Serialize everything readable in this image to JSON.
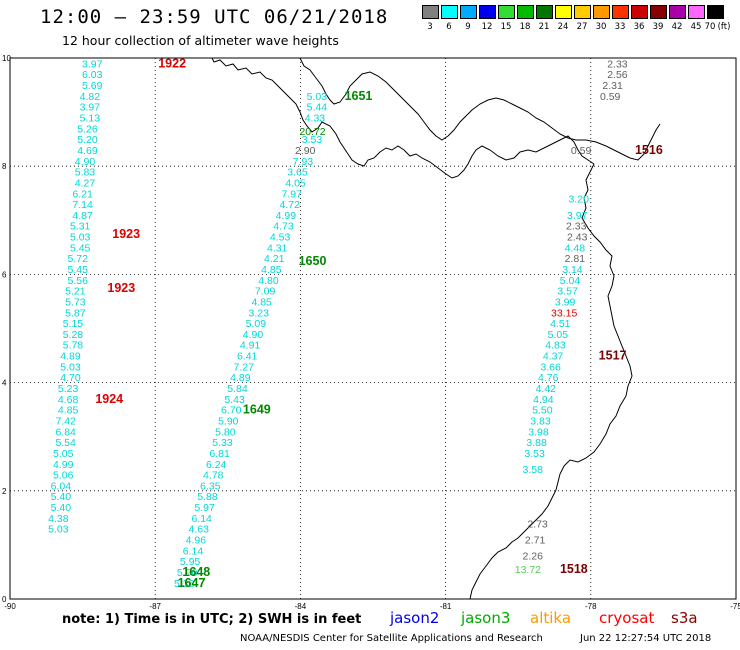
{
  "header": {
    "title": "12:00 – 23:59 UTC 06/21/2018",
    "subtitle": "12 hour collection of altimeter wave heights"
  },
  "color_scale": {
    "unit_label": "(ft)",
    "bins": [
      {
        "label": "3",
        "color": "#808080"
      },
      {
        "label": "6",
        "color": "#00ffff"
      },
      {
        "label": "9",
        "color": "#00aaff"
      },
      {
        "label": "12",
        "color": "#0000ee"
      },
      {
        "label": "15",
        "color": "#33dd33"
      },
      {
        "label": "18",
        "color": "#00bb00"
      },
      {
        "label": "21",
        "color": "#007700"
      },
      {
        "label": "24",
        "color": "#ffff00"
      },
      {
        "label": "27",
        "color": "#ffcc00"
      },
      {
        "label": "30",
        "color": "#ff9900"
      },
      {
        "label": "33",
        "color": "#ff3300"
      },
      {
        "label": "36",
        "color": "#cc0000"
      },
      {
        "label": "39",
        "color": "#880000"
      },
      {
        "label": "42",
        "color": "#aa00aa"
      },
      {
        "label": "45",
        "color": "#ff66ff"
      },
      {
        "label": "70",
        "color": "#000000"
      }
    ]
  },
  "axes": {
    "lon_ticks": [
      -90,
      -87,
      -84,
      -81,
      -78,
      -75
    ],
    "lat_ticks": [
      0,
      2,
      4,
      6,
      8,
      10
    ],
    "lon_range": [
      -90,
      -75
    ],
    "lat_range": [
      0,
      10
    ]
  },
  "colors": {
    "cyan": "#00d8d8",
    "gray": "#606060",
    "green": "#008800",
    "red": "#dd0000",
    "maroon": "#7a0000",
    "lightgreen": "#55cc55",
    "olive": "#556600"
  },
  "tracks": [
    {
      "color_key": "cyan",
      "points": [
        {
          "lon": -88.3,
          "lat": 9.9,
          "v": "3.97"
        },
        {
          "lon": -88.3,
          "lat": 9.7,
          "v": "6.03"
        },
        {
          "lon": -88.3,
          "lat": 9.5,
          "v": "5.69"
        },
        {
          "lon": -88.35,
          "lat": 9.3,
          "v": "4.82"
        },
        {
          "lon": -88.35,
          "lat": 9.1,
          "v": "3.97"
        },
        {
          "lon": -88.35,
          "lat": 8.9,
          "v": "5.13"
        },
        {
          "lon": -88.4,
          "lat": 8.7,
          "v": "5.26"
        },
        {
          "lon": -88.4,
          "lat": 8.5,
          "v": "5.20"
        },
        {
          "lon": -88.4,
          "lat": 8.3,
          "v": "4.69"
        },
        {
          "lon": -88.45,
          "lat": 8.1,
          "v": "4.90"
        },
        {
          "lon": -88.45,
          "lat": 7.9,
          "v": "5.83"
        },
        {
          "lon": -88.45,
          "lat": 7.7,
          "v": "4.27"
        },
        {
          "lon": -88.5,
          "lat": 7.5,
          "v": "6.21"
        },
        {
          "lon": -88.5,
          "lat": 7.3,
          "v": "7.14"
        },
        {
          "lon": -88.5,
          "lat": 7.1,
          "v": "4.87"
        },
        {
          "lon": -88.55,
          "lat": 6.9,
          "v": "5.31"
        },
        {
          "lon": -88.55,
          "lat": 6.7,
          "v": "5.03"
        },
        {
          "lon": -88.55,
          "lat": 6.5,
          "v": "5.45"
        },
        {
          "lon": -88.6,
          "lat": 6.3,
          "v": "5.72"
        },
        {
          "lon": -88.6,
          "lat": 6.1,
          "v": "5.45"
        },
        {
          "lon": -88.6,
          "lat": 5.9,
          "v": "5.56"
        },
        {
          "lon": -88.65,
          "lat": 5.7,
          "v": "5.21"
        },
        {
          "lon": -88.65,
          "lat": 5.5,
          "v": "5.73"
        },
        {
          "lon": -88.65,
          "lat": 5.3,
          "v": "5.87"
        },
        {
          "lon": -88.7,
          "lat": 5.1,
          "v": "5.15"
        },
        {
          "lon": -88.7,
          "lat": 4.9,
          "v": "5.28"
        },
        {
          "lon": -88.7,
          "lat": 4.7,
          "v": "5.78"
        },
        {
          "lon": -88.75,
          "lat": 4.5,
          "v": "4.89"
        },
        {
          "lon": -88.75,
          "lat": 4.3,
          "v": "5.03"
        },
        {
          "lon": -88.75,
          "lat": 4.1,
          "v": "4.70"
        },
        {
          "lon": -88.8,
          "lat": 3.9,
          "v": "5.23"
        },
        {
          "lon": -88.8,
          "lat": 3.7,
          "v": "4.68"
        },
        {
          "lon": -88.8,
          "lat": 3.5,
          "v": "4.85"
        },
        {
          "lon": -88.85,
          "lat": 3.3,
          "v": "7.42"
        },
        {
          "lon": -88.85,
          "lat": 3.1,
          "v": "6.84"
        },
        {
          "lon": -88.85,
          "lat": 2.9,
          "v": "5.54"
        },
        {
          "lon": -88.9,
          "lat": 2.7,
          "v": "5.05"
        },
        {
          "lon": -88.9,
          "lat": 2.5,
          "v": "4.99"
        },
        {
          "lon": -88.9,
          "lat": 2.3,
          "v": "5.06"
        },
        {
          "lon": -88.95,
          "lat": 2.1,
          "v": "6.04"
        },
        {
          "lon": -88.95,
          "lat": 1.9,
          "v": "5.40"
        },
        {
          "lon": -88.95,
          "lat": 1.7,
          "v": "5.40"
        },
        {
          "lon": -89.0,
          "lat": 1.5,
          "v": "4.38"
        },
        {
          "lon": -89.0,
          "lat": 1.3,
          "v": "5.03"
        }
      ]
    },
    {
      "color_key": "cyan",
      "points": [
        {
          "lon": -83.66,
          "lat": 9.3,
          "v": "5.03"
        },
        {
          "lon": -83.66,
          "lat": 9.1,
          "v": "5.44"
        },
        {
          "lon": -83.7,
          "lat": 8.9,
          "v": "4.33"
        },
        {
          "lon": -83.76,
          "lat": 8.5,
          "v": "3.53"
        },
        {
          "lon": -83.95,
          "lat": 8.1,
          "v": "7.93"
        },
        {
          "lon": -84.06,
          "lat": 7.9,
          "v": "3.65"
        },
        {
          "lon": -84.1,
          "lat": 7.7,
          "v": "4.05"
        },
        {
          "lon": -84.18,
          "lat": 7.5,
          "v": "7.97"
        },
        {
          "lon": -84.22,
          "lat": 7.3,
          "v": "4.72"
        },
        {
          "lon": -84.3,
          "lat": 7.1,
          "v": "4.99"
        },
        {
          "lon": -84.35,
          "lat": 6.9,
          "v": "4.73"
        },
        {
          "lon": -84.42,
          "lat": 6.7,
          "v": "4.53"
        },
        {
          "lon": -84.48,
          "lat": 6.5,
          "v": "4.31"
        },
        {
          "lon": -84.54,
          "lat": 6.3,
          "v": "4.21"
        },
        {
          "lon": -84.6,
          "lat": 6.1,
          "v": "4.85"
        },
        {
          "lon": -84.66,
          "lat": 5.9,
          "v": "4.80"
        },
        {
          "lon": -84.73,
          "lat": 5.7,
          "v": "7.09"
        },
        {
          "lon": -84.8,
          "lat": 5.5,
          "v": "4.85"
        },
        {
          "lon": -84.86,
          "lat": 5.3,
          "v": "3.23"
        },
        {
          "lon": -84.92,
          "lat": 5.1,
          "v": "5.09"
        },
        {
          "lon": -84.98,
          "lat": 4.9,
          "v": "4.90"
        },
        {
          "lon": -85.04,
          "lat": 4.7,
          "v": "4.91"
        },
        {
          "lon": -85.1,
          "lat": 4.5,
          "v": "6.41"
        },
        {
          "lon": -85.17,
          "lat": 4.3,
          "v": "7.27"
        },
        {
          "lon": -85.24,
          "lat": 4.1,
          "v": "4.89"
        },
        {
          "lon": -85.3,
          "lat": 3.9,
          "v": "5.84"
        },
        {
          "lon": -85.36,
          "lat": 3.7,
          "v": "5.43"
        },
        {
          "lon": -85.43,
          "lat": 3.5,
          "v": "6.70"
        },
        {
          "lon": -85.49,
          "lat": 3.3,
          "v": "5.90"
        },
        {
          "lon": -85.55,
          "lat": 3.1,
          "v": "5.80"
        },
        {
          "lon": -85.61,
          "lat": 2.9,
          "v": "5.33"
        },
        {
          "lon": -85.67,
          "lat": 2.7,
          "v": "6.81"
        },
        {
          "lon": -85.74,
          "lat": 2.5,
          "v": "6.24"
        },
        {
          "lon": -85.8,
          "lat": 2.3,
          "v": "4.78"
        },
        {
          "lon": -85.86,
          "lat": 2.1,
          "v": "6.35"
        },
        {
          "lon": -85.92,
          "lat": 1.9,
          "v": "5.88"
        },
        {
          "lon": -85.98,
          "lat": 1.7,
          "v": "5.97"
        },
        {
          "lon": -86.04,
          "lat": 1.5,
          "v": "6.14"
        },
        {
          "lon": -86.1,
          "lat": 1.3,
          "v": "4.63"
        },
        {
          "lon": -86.16,
          "lat": 1.1,
          "v": "4.96"
        },
        {
          "lon": -86.22,
          "lat": 0.9,
          "v": "6.14"
        },
        {
          "lon": -86.28,
          "lat": 0.7,
          "v": "5.95"
        },
        {
          "lon": -86.34,
          "lat": 0.5,
          "v": "5.90"
        },
        {
          "lon": -86.4,
          "lat": 0.3,
          "v": "5.36"
        }
      ]
    },
    {
      "color_key": "gray",
      "points": [
        {
          "lon": -77.45,
          "lat": 9.9,
          "v": "2.33"
        },
        {
          "lon": -77.45,
          "lat": 9.7,
          "v": "2.56"
        },
        {
          "lon": -77.55,
          "lat": 9.5,
          "v": "2.31"
        },
        {
          "lon": -77.6,
          "lat": 9.3,
          "v": "0.59"
        },
        {
          "lon": -78.2,
          "lat": 8.3,
          "v": "0.59"
        },
        {
          "lon": -83.9,
          "lat": 8.3,
          "v": "2.90"
        },
        {
          "lon": -78.3,
          "lat": 6.9,
          "v": "2.33"
        },
        {
          "lon": -78.28,
          "lat": 6.7,
          "v": "2.43"
        },
        {
          "lon": -78.33,
          "lat": 6.3,
          "v": "2.81"
        },
        {
          "lon": -79.1,
          "lat": 1.4,
          "v": "2.73"
        },
        {
          "lon": -79.15,
          "lat": 1.1,
          "v": "2.71"
        },
        {
          "lon": -79.2,
          "lat": 0.8,
          "v": "2.26"
        }
      ]
    },
    {
      "color_key": "cyan",
      "points": [
        {
          "lon": -78.25,
          "lat": 7.4,
          "v": "3.20"
        },
        {
          "lon": -78.28,
          "lat": 7.1,
          "v": "3.97"
        },
        {
          "lon": -78.33,
          "lat": 6.5,
          "v": "4.48"
        },
        {
          "lon": -78.38,
          "lat": 6.1,
          "v": "3.14"
        },
        {
          "lon": -78.43,
          "lat": 5.9,
          "v": "5.04"
        },
        {
          "lon": -78.48,
          "lat": 5.7,
          "v": "3.57"
        },
        {
          "lon": -78.53,
          "lat": 5.5,
          "v": "3.99"
        },
        {
          "lon": -78.63,
          "lat": 5.1,
          "v": "4.51"
        },
        {
          "lon": -78.68,
          "lat": 4.9,
          "v": "5.05"
        },
        {
          "lon": -78.73,
          "lat": 4.7,
          "v": "4.83"
        },
        {
          "lon": -78.78,
          "lat": 4.5,
          "v": "4.37"
        },
        {
          "lon": -78.83,
          "lat": 4.3,
          "v": "3.66"
        },
        {
          "lon": -78.88,
          "lat": 4.1,
          "v": "4.76"
        },
        {
          "lon": -78.93,
          "lat": 3.9,
          "v": "4.42"
        },
        {
          "lon": -78.98,
          "lat": 3.7,
          "v": "4.94"
        },
        {
          "lon": -79.0,
          "lat": 3.5,
          "v": "5.50"
        },
        {
          "lon": -79.04,
          "lat": 3.3,
          "v": "3.83"
        },
        {
          "lon": -79.08,
          "lat": 3.1,
          "v": "3.98"
        },
        {
          "lon": -79.12,
          "lat": 2.9,
          "v": "3.88"
        },
        {
          "lon": -79.16,
          "lat": 2.7,
          "v": "3.53"
        },
        {
          "lon": -79.2,
          "lat": 2.4,
          "v": "3.58"
        }
      ]
    },
    {
      "color_key": "green",
      "points": [
        {
          "lon": -83.75,
          "lat": 8.65,
          "v": "20.72"
        }
      ]
    },
    {
      "color_key": "red",
      "points": [
        {
          "lon": -78.55,
          "lat": 5.3,
          "v": "33.15"
        }
      ]
    },
    {
      "color_key": "lightgreen",
      "points": [
        {
          "lon": -79.3,
          "lat": 0.55,
          "v": "13.72"
        }
      ]
    }
  ],
  "pass_labels": [
    {
      "lon": -86.65,
      "lat": 9.9,
      "text": "1922",
      "color_key": "red"
    },
    {
      "lon": -87.6,
      "lat": 6.75,
      "text": "1923",
      "color_key": "red"
    },
    {
      "lon": -87.7,
      "lat": 5.75,
      "text": "1923",
      "color_key": "red"
    },
    {
      "lon": -87.95,
      "lat": 3.7,
      "text": "1924",
      "color_key": "red"
    },
    {
      "lon": -82.8,
      "lat": 9.3,
      "text": "1651",
      "color_key": "green"
    },
    {
      "lon": -83.75,
      "lat": 6.25,
      "text": "1650",
      "color_key": "green"
    },
    {
      "lon": -84.9,
      "lat": 3.5,
      "text": "1649",
      "color_key": "green"
    },
    {
      "lon": -86.15,
      "lat": 0.5,
      "text": "1648",
      "color_key": "green"
    },
    {
      "lon": -86.25,
      "lat": 0.3,
      "text": "1647",
      "color_key": "green"
    },
    {
      "lon": -76.8,
      "lat": 8.3,
      "text": "1516",
      "color_key": "maroon"
    },
    {
      "lon": -77.55,
      "lat": 4.5,
      "text": "1517",
      "color_key": "maroon"
    },
    {
      "lon": -78.35,
      "lat": 0.55,
      "text": "1518",
      "color_key": "maroon"
    }
  ],
  "footer": {
    "note": "note:  1) Time is in UTC;  2) SWH is in feet",
    "legend": [
      {
        "label": "jason2",
        "color": "#0000ee"
      },
      {
        "label": "jason3",
        "color": "#00aa00"
      },
      {
        "label": "altika",
        "color": "#ff9900"
      },
      {
        "label": "cryosat",
        "color": "#ff0000"
      },
      {
        "label": "s3a",
        "color": "#880000"
      }
    ],
    "credit": "NOAA/NESDIS Center for Satellite Applications and Research",
    "timestamp": "Jun 22 12:27:54 UTC 2018"
  }
}
